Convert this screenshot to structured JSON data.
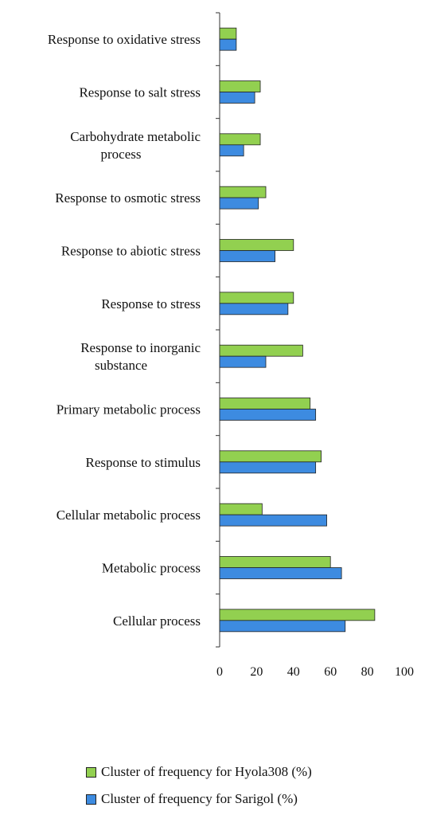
{
  "chart_data": {
    "type": "bar",
    "orientation": "horizontal",
    "categories": [
      "Response to oxidative stress",
      "Response to salt stress",
      "Carbohydrate metabolic process",
      "Response to osmotic stress",
      "Response to abiotic stress",
      "Response to stress",
      "Response to inorganic substance",
      "Primary metabolic process",
      "Response to stimulus",
      "Cellular metabolic process",
      "Metabolic process",
      "Cellular process"
    ],
    "category_label_lines": [
      [
        "Response to oxidative stress"
      ],
      [
        "Response to salt stress"
      ],
      [
        "Carbohydrate metabolic",
        "process"
      ],
      [
        "Response to osmotic stress"
      ],
      [
        "Response to abiotic stress"
      ],
      [
        "Response to stress"
      ],
      [
        "Response to inorganic",
        "substance"
      ],
      [
        "Primary metabolic process"
      ],
      [
        "Response to stimulus"
      ],
      [
        "Cellular metabolic process"
      ],
      [
        "Metabolic process"
      ],
      [
        "Cellular process"
      ]
    ],
    "series": [
      {
        "name": "Cluster of frequency for  Hyola308 (%)",
        "color": "#92d050",
        "values": [
          9,
          22,
          22,
          25,
          40,
          40,
          45,
          49,
          55,
          23,
          60,
          84
        ]
      },
      {
        "name": "Cluster of frequency for  Sarigol (%)",
        "color": "#3d8be0",
        "values": [
          9,
          19,
          13,
          21,
          30,
          37,
          25,
          52,
          52,
          58,
          66,
          68
        ]
      }
    ],
    "xlim": [
      0,
      100
    ],
    "xticks": [
      0,
      20,
      40,
      60,
      80,
      100
    ],
    "xlabel": "",
    "ylabel": "",
    "title": "",
    "grid": false,
    "legend_position": "bottom"
  }
}
